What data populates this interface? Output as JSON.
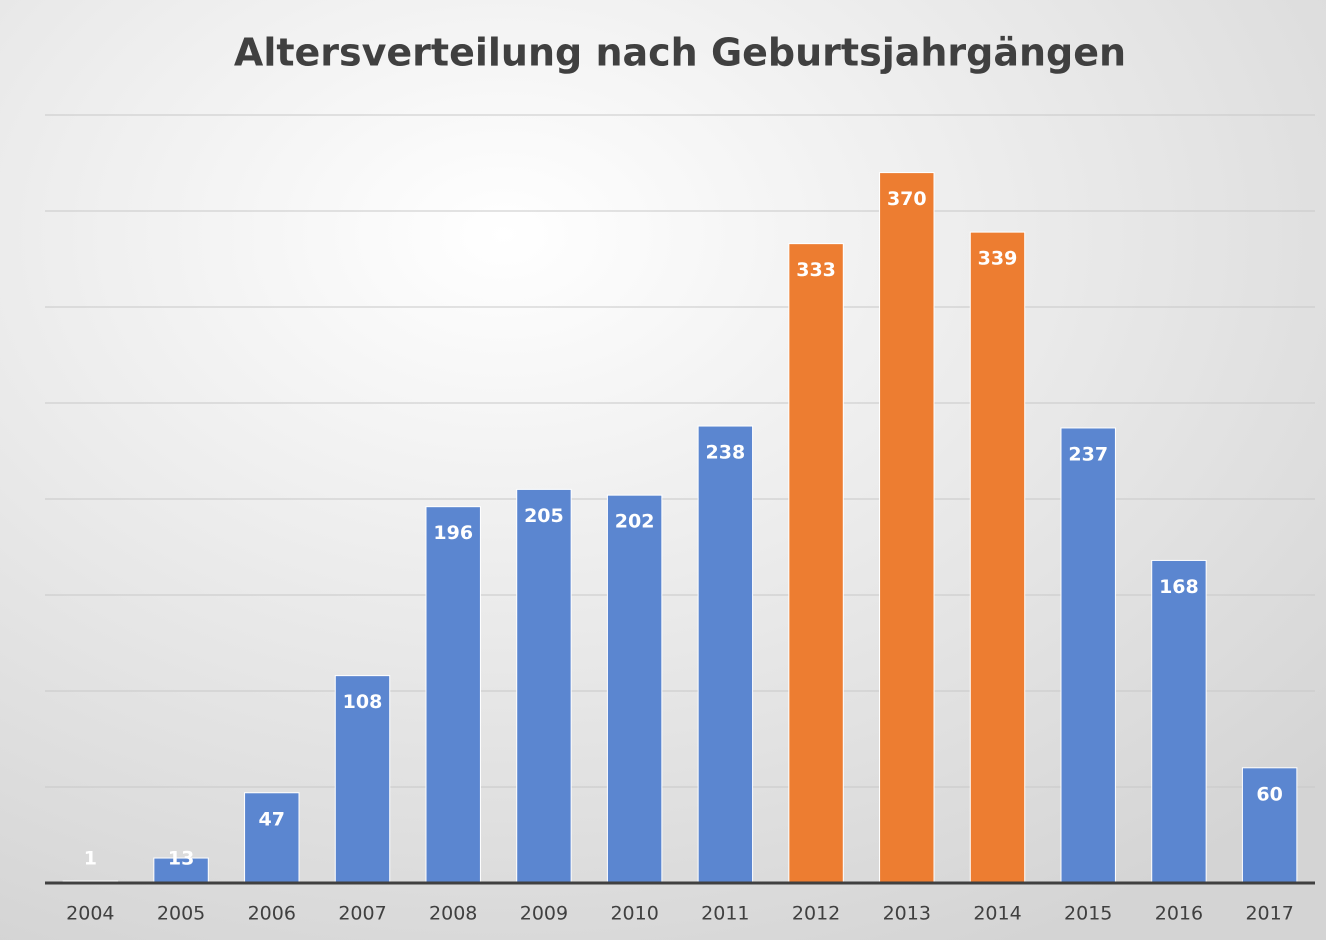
{
  "chart_data": {
    "type": "bar",
    "title": "Altersverteilung nach Geburtsjahrgängen",
    "categories": [
      "2004",
      "2005",
      "2006",
      "2007",
      "2008",
      "2009",
      "2010",
      "2011",
      "2012",
      "2013",
      "2014",
      "2015",
      "2016",
      "2017"
    ],
    "values": [
      1,
      13,
      47,
      108,
      196,
      205,
      202,
      238,
      333,
      370,
      339,
      237,
      168,
      60
    ],
    "colors": [
      "#5b86d0",
      "#5b86d0",
      "#5b86d0",
      "#5b86d0",
      "#5b86d0",
      "#5b86d0",
      "#5b86d0",
      "#5b86d0",
      "#ed7d31",
      "#ed7d31",
      "#ed7d31",
      "#5b86d0",
      "#5b86d0",
      "#5b86d0"
    ],
    "ylim": [
      0,
      400
    ],
    "yticks": [
      0,
      50,
      100,
      150,
      200,
      250,
      300,
      350,
      400
    ],
    "grid": true
  }
}
